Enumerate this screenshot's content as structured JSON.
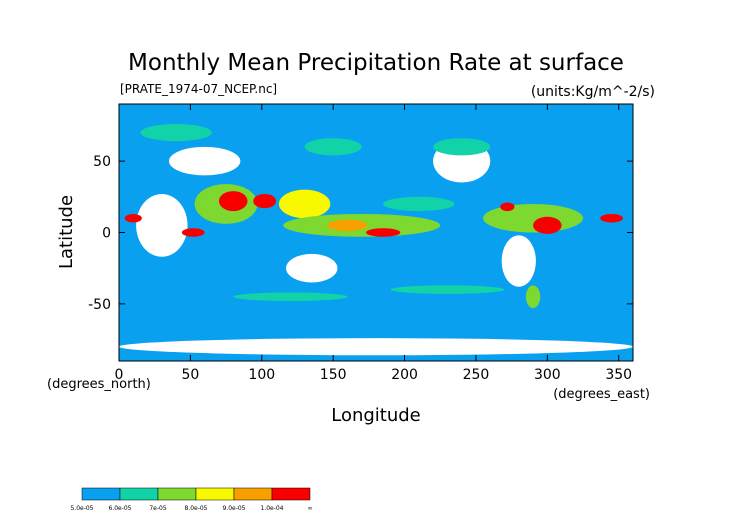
{
  "chart_data": {
    "type": "heatmap",
    "title": "Monthly Mean Precipitation Rate at surface",
    "subtitle_left": "[PRATE_1974-07_NCEP.nc]",
    "subtitle_right": "(units:Kg/m^-2/s)",
    "xlabel": "Longitude",
    "ylabel": "Latitude",
    "x_unit_note": "(degrees_east)",
    "y_unit_note": "(degrees_north)",
    "xlim": [
      0,
      360
    ],
    "ylim": [
      -90,
      90
    ],
    "x_ticks": [
      0,
      50,
      100,
      150,
      200,
      250,
      300,
      350
    ],
    "y_ticks": [
      -50,
      0,
      50
    ],
    "colorbar": {
      "labels": [
        "5.0e-05",
        "6.0e-05",
        "7e-05",
        "8.0e-05",
        "9.0e-05",
        "1.0e-04",
        "∞"
      ],
      "colors": [
        "#0aa0f0",
        "#12d2a8",
        "#7dd830",
        "#f8f800",
        "#f8a000",
        "#f80000"
      ]
    },
    "regions": [
      {
        "level": 2,
        "lon": 75,
        "lat": 20,
        "rx": 22,
        "ry": 14
      },
      {
        "level": 5,
        "lon": 80,
        "lat": 22,
        "rx": 10,
        "ry": 7
      },
      {
        "level": 5,
        "lon": 102,
        "lat": 22,
        "rx": 8,
        "ry": 5
      },
      {
        "level": 3,
        "lon": 130,
        "lat": 20,
        "rx": 18,
        "ry": 10
      },
      {
        "level": 2,
        "lon": 170,
        "lat": 5,
        "rx": 55,
        "ry": 8
      },
      {
        "level": 5,
        "lon": 185,
        "lat": 0,
        "rx": 12,
        "ry": 3
      },
      {
        "level": 4,
        "lon": 160,
        "lat": 5,
        "rx": 14,
        "ry": 4
      },
      {
        "level": 5,
        "lon": 10,
        "lat": 10,
        "rx": 6,
        "ry": 3
      },
      {
        "level": 5,
        "lon": 52,
        "lat": 0,
        "rx": 8,
        "ry": 3
      },
      {
        "level": 2,
        "lon": 290,
        "lat": 10,
        "rx": 35,
        "ry": 10
      },
      {
        "level": 5,
        "lon": 300,
        "lat": 5,
        "rx": 10,
        "ry": 6
      },
      {
        "level": 5,
        "lon": 345,
        "lat": 10,
        "rx": 8,
        "ry": 3
      },
      {
        "level": 5,
        "lon": 272,
        "lat": 18,
        "rx": 5,
        "ry": 3
      },
      {
        "level": 1,
        "lon": 210,
        "lat": 20,
        "rx": 25,
        "ry": 5
      },
      {
        "level": 1,
        "lon": 40,
        "lat": 70,
        "rx": 25,
        "ry": 6
      },
      {
        "level": 1,
        "lon": 150,
        "lat": 60,
        "rx": 20,
        "ry": 6
      },
      {
        "level": 1,
        "lon": 240,
        "lat": 60,
        "rx": 20,
        "ry": 6
      },
      {
        "level": 1,
        "lon": 120,
        "lat": -45,
        "rx": 40,
        "ry": 3
      },
      {
        "level": 1,
        "lon": 230,
        "lat": -40,
        "rx": 40,
        "ry": 3
      },
      {
        "level": 2,
        "lon": 290,
        "lat": -45,
        "rx": 5,
        "ry": 8
      }
    ],
    "land": [
      {
        "lon": 30,
        "lat": 5,
        "rx": 18,
        "ry": 22
      },
      {
        "lon": 135,
        "lat": -25,
        "rx": 18,
        "ry": 10
      },
      {
        "lon": 280,
        "lat": -20,
        "rx": 12,
        "ry": 18
      },
      {
        "lon": 240,
        "lat": 50,
        "rx": 20,
        "ry": 15
      },
      {
        "lon": 60,
        "lat": 50,
        "rx": 25,
        "ry": 10
      },
      {
        "lon": 180,
        "lat": -80,
        "rx": 180,
        "ry": 6
      }
    ]
  }
}
